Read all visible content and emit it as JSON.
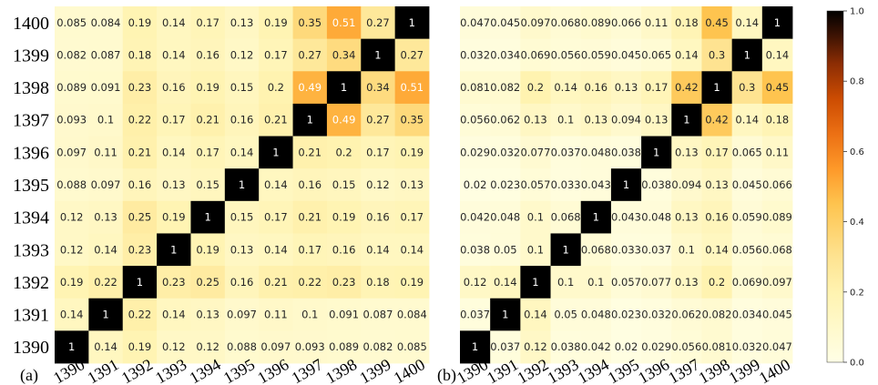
{
  "chart_data": [
    {
      "type": "heatmap",
      "panel_label": "(a)",
      "x_categories": [
        "1390",
        "1391",
        "1392",
        "1393",
        "1394",
        "1395",
        "1396",
        "1397",
        "1398",
        "1399",
        "1400"
      ],
      "y_categories": [
        "1400",
        "1399",
        "1398",
        "1397",
        "1396",
        "1395",
        "1394",
        "1393",
        "1392",
        "1391",
        "1390"
      ],
      "values": [
        [
          "0.085",
          "0.084",
          "0.19",
          "0.14",
          "0.17",
          "0.13",
          "0.19",
          "0.35",
          "0.51",
          "0.27",
          "1"
        ],
        [
          "0.082",
          "0.087",
          "0.18",
          "0.14",
          "0.16",
          "0.12",
          "0.17",
          "0.27",
          "0.34",
          "1",
          "0.27"
        ],
        [
          "0.089",
          "0.091",
          "0.23",
          "0.16",
          "0.19",
          "0.15",
          "0.2",
          "0.49",
          "1",
          "0.34",
          "0.51"
        ],
        [
          "0.093",
          "0.1",
          "0.22",
          "0.17",
          "0.21",
          "0.16",
          "0.21",
          "1",
          "0.49",
          "0.27",
          "0.35"
        ],
        [
          "0.097",
          "0.11",
          "0.21",
          "0.14",
          "0.17",
          "0.14",
          "1",
          "0.21",
          "0.2",
          "0.17",
          "0.19"
        ],
        [
          "0.088",
          "0.097",
          "0.16",
          "0.13",
          "0.15",
          "1",
          "0.14",
          "0.16",
          "0.15",
          "0.12",
          "0.13"
        ],
        [
          "0.12",
          "0.13",
          "0.25",
          "0.19",
          "1",
          "0.15",
          "0.17",
          "0.21",
          "0.19",
          "0.16",
          "0.17"
        ],
        [
          "0.12",
          "0.14",
          "0.23",
          "1",
          "0.19",
          "0.13",
          "0.14",
          "0.17",
          "0.16",
          "0.14",
          "0.14"
        ],
        [
          "0.19",
          "0.22",
          "1",
          "0.23",
          "0.25",
          "0.16",
          "0.21",
          "0.22",
          "0.23",
          "0.18",
          "0.19"
        ],
        [
          "0.14",
          "1",
          "0.22",
          "0.14",
          "0.13",
          "0.097",
          "0.11",
          "0.1",
          "0.091",
          "0.087",
          "0.084"
        ],
        [
          "1",
          "0.14",
          "0.19",
          "0.12",
          "0.12",
          "0.088",
          "0.097",
          "0.093",
          "0.089",
          "0.082",
          "0.085"
        ]
      ]
    },
    {
      "type": "heatmap",
      "panel_label": "(b)",
      "x_categories": [
        "1390",
        "1391",
        "1392",
        "1393",
        "1394",
        "1395",
        "1396",
        "1397",
        "1398",
        "1399",
        "1400"
      ],
      "y_categories": [
        "1400",
        "1399",
        "1398",
        "1397",
        "1396",
        "1395",
        "1394",
        "1393",
        "1392",
        "1391",
        "1390"
      ],
      "values": [
        [
          "0.047",
          "0.045",
          "0.097",
          "0.068",
          "0.089",
          "0.066",
          "0.11",
          "0.18",
          "0.45",
          "0.14",
          "1"
        ],
        [
          "0.032",
          "0.034",
          "0.069",
          "0.056",
          "0.059",
          "0.045",
          "0.065",
          "0.14",
          "0.3",
          "1",
          "0.14"
        ],
        [
          "0.081",
          "0.082",
          "0.2",
          "0.14",
          "0.16",
          "0.13",
          "0.17",
          "0.42",
          "1",
          "0.3",
          "0.45"
        ],
        [
          "0.056",
          "0.062",
          "0.13",
          "0.1",
          "0.13",
          "0.094",
          "0.13",
          "1",
          "0.42",
          "0.14",
          "0.18"
        ],
        [
          "0.029",
          "0.032",
          "0.077",
          "0.037",
          "0.048",
          "0.038",
          "1",
          "0.13",
          "0.17",
          "0.065",
          "0.11"
        ],
        [
          "0.02",
          "0.023",
          "0.057",
          "0.033",
          "0.043",
          "1",
          "0.038",
          "0.094",
          "0.13",
          "0.045",
          "0.066"
        ],
        [
          "0.042",
          "0.048",
          "0.1",
          "0.068",
          "1",
          "0.043",
          "0.048",
          "0.13",
          "0.16",
          "0.059",
          "0.089"
        ],
        [
          "0.038",
          "0.05",
          "0.1",
          "1",
          "0.068",
          "0.033",
          "0.037",
          "0.1",
          "0.14",
          "0.056",
          "0.068"
        ],
        [
          "0.12",
          "0.14",
          "1",
          "0.1",
          "0.1",
          "0.057",
          "0.077",
          "0.13",
          "0.2",
          "0.069",
          "0.097"
        ],
        [
          "0.037",
          "1",
          "0.14",
          "0.05",
          "0.048",
          "0.023",
          "0.032",
          "0.062",
          "0.082",
          "0.034",
          "0.045"
        ],
        [
          "1",
          "0.037",
          "0.12",
          "0.038",
          "0.042",
          "0.02",
          "0.029",
          "0.056",
          "0.081",
          "0.032",
          "0.047"
        ]
      ]
    }
  ],
  "colorbar": {
    "range": [
      0.0,
      1.0
    ],
    "ticks": [
      "0.0",
      "0.2",
      "0.4",
      "0.6",
      "0.8",
      "1.0"
    ],
    "colormap": "YlOrBr-to-black (afmhot reversed)"
  }
}
